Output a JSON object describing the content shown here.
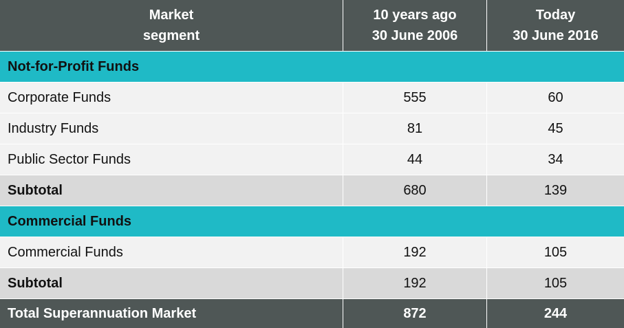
{
  "table": {
    "header": [
      [
        "Market",
        "segment"
      ],
      [
        "10 years ago",
        "30 June 2006"
      ],
      [
        "Today",
        "30 June 2016"
      ]
    ],
    "sections": [
      {
        "title": "Not-for-Profit Funds",
        "rows": [
          {
            "label": "Corporate Funds",
            "values": [
              555,
              60
            ]
          },
          {
            "label": "Industry Funds",
            "values": [
              81,
              45
            ]
          },
          {
            "label": "Public Sector Funds",
            "values": [
              44,
              34
            ]
          }
        ],
        "subtotal": {
          "label": "Subtotal",
          "values": [
            680,
            139
          ]
        }
      },
      {
        "title": "Commercial Funds",
        "rows": [
          {
            "label": "Commercial Funds",
            "values": [
              192,
              105
            ]
          }
        ],
        "subtotal": {
          "label": "Subtotal",
          "values": [
            192,
            105
          ]
        }
      }
    ],
    "total": {
      "label": "Total Superannuation Market",
      "values": [
        872,
        244
      ]
    }
  }
}
